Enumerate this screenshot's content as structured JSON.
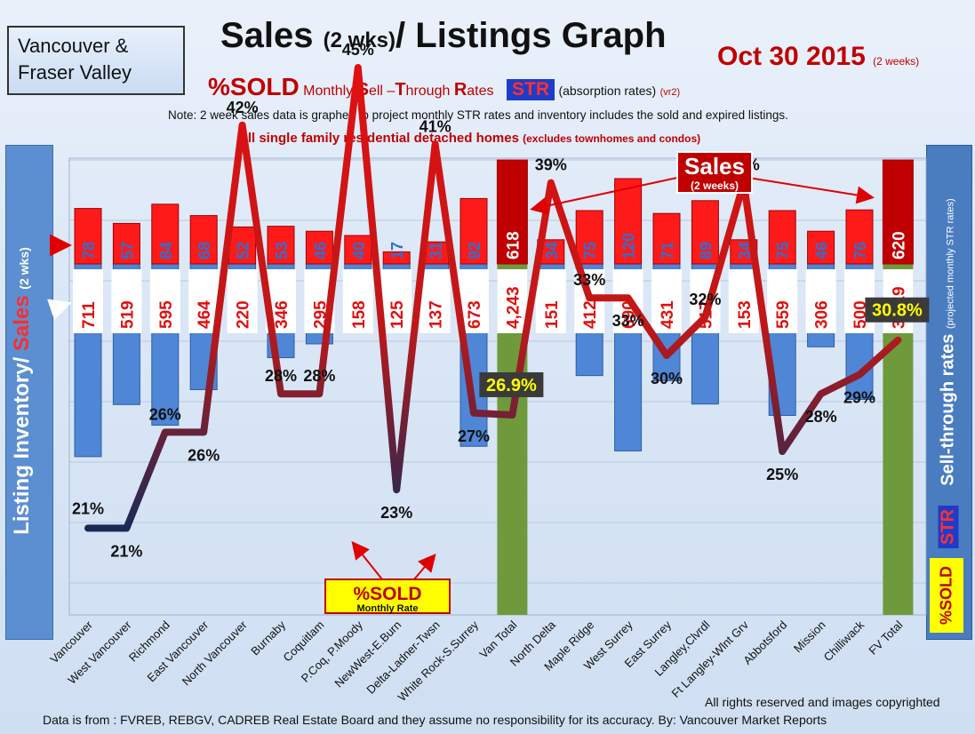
{
  "header": {
    "region_line1": "Vancouver &",
    "region_line2": "Fraser Valley",
    "title_main": "Sales",
    "title_small": "(2 wks)",
    "title_rest": "/ Listings Graph",
    "date": "Oct 30 2015",
    "date_small": "(2 weeks)",
    "subtitle_pct": "%SOLD",
    "subtitle_monthly": "Monthly",
    "subtitle_s": "S",
    "subtitle_ell": "ell –",
    "subtitle_t": "T",
    "subtitle_hrough": "hrough",
    "subtitle_r": "R",
    "subtitle_ates": "ates",
    "subtitle_str": "STR",
    "subtitle_abs": "(absorption rates)",
    "subtitle_vr": "(vr2)",
    "note": "Note: 2 week sales data is graphed to project monthly STR rates and inventory includes the sold and expired listings.",
    "note2_main": "All single family residential detached homes",
    "note2_small": "(excludes townhomes and condos)"
  },
  "side_labels": {
    "left_inventory": "Listing Inventory/",
    "left_sales": "Sales",
    "left_small": "(2 wks)",
    "right_main": "Sell-through rates",
    "right_small": "(projected monthly STR rates)",
    "right_str": "STR",
    "right_sold": "%SOLD"
  },
  "callouts": {
    "sales_title": "Sales",
    "sales_sub": "(2 weeks)",
    "sold_title": "%SOLD",
    "sold_sub": "Monthly Rate"
  },
  "footer": {
    "rights": "All rights reserved and  images copyrighted",
    "source": "Data is from : FVREB, REBGV, CADREB Real Estate Board and they assume no responsibility  for its accuracy. By: Vancouver Market Reports"
  },
  "colors": {
    "sales_bar": "#ff1a1a",
    "total_sales_bar": "#c00000",
    "inventory_bar": "#4f86d6",
    "total_inventory_bar": "#6f9a3c",
    "str_line": "#d01010",
    "str_line_low": "#1a2a55",
    "sales_value_text": "#2f6fd0",
    "inventory_value_text": "#e01010"
  },
  "chart_data": {
    "type": "bar",
    "categories": [
      "Vancouver",
      "West Vancouver",
      "Richmond",
      "East Vancouver",
      "North Vancouver",
      "Burnaby",
      "Coquitlam",
      "P.Coq, P.Moody",
      "NewWest-E.Burn",
      "Delta-Ladner-Twsn",
      "White Rock-S.Surrey",
      "Van Total",
      "North Delta",
      "Maple Ridge",
      "West Surrey",
      "East Surrey",
      "Langley,Clvrdl",
      "Ft Langley-Wlnt Grv",
      "Abbotsford",
      "Mission",
      "Chilliwack",
      "FV Total"
    ],
    "series": [
      {
        "name": "Sales",
        "values": [
          78,
          57,
          84,
          68,
          52,
          53,
          46,
          40,
          17,
          31,
          92,
          618,
          34,
          75,
          120,
          71,
          89,
          34,
          75,
          46,
          76,
          620
        ],
        "labels": [
          "78",
          "57",
          "84",
          "68",
          "52",
          "53",
          "46",
          "40",
          "17",
          "31",
          "92",
          "618",
          "34",
          "75",
          "120",
          "71",
          "89",
          "34",
          "75",
          "46",
          "76",
          "620"
        ]
      },
      {
        "name": "Listing Inventory",
        "values": [
          711,
          519,
          595,
          464,
          220,
          346,
          295,
          158,
          125,
          137,
          673,
          4243,
          151,
          412,
          690,
          431,
          517,
          153,
          559,
          306,
          500,
          3719
        ],
        "labels": [
          "711",
          "519",
          "595",
          "464",
          "220",
          "346",
          "295",
          "158",
          "125",
          "137",
          "673",
          "4,243",
          "151",
          "412",
          "690",
          "431",
          "517",
          "153",
          "559",
          "306",
          "500",
          "3,719"
        ]
      },
      {
        "name": "STR",
        "values": [
          21,
          21,
          26,
          26,
          42,
          28,
          28,
          45,
          23,
          41,
          27,
          26.9,
          39,
          33,
          33,
          30,
          32,
          39,
          25,
          28,
          29,
          30.8
        ],
        "labels": [
          "21%",
          "21%",
          "26%",
          "26%",
          "42%",
          "28%",
          "28%",
          "45%",
          "23%",
          "41%",
          "27%",
          "26.9%",
          "39%",
          "33%",
          "33%",
          "30%",
          "32%",
          "39%",
          "25%",
          "28%",
          "29%",
          "30.8%"
        ]
      }
    ],
    "totals": [
      "Van Total",
      "FV Total"
    ]
  }
}
